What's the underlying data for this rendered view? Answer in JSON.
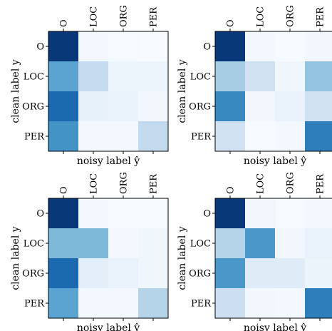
{
  "chart_data": [
    {
      "type": "heatmap",
      "rows": [
        "O",
        "LOC",
        "ORG",
        "PER"
      ],
      "columns": [
        "O",
        "LOC",
        "ORG",
        "PER"
      ],
      "xlabel": "noisy label ŷ",
      "ylabel": "clean label y",
      "values": [
        [
          0.97,
          0.02,
          0.01,
          0.0
        ],
        [
          0.55,
          0.25,
          0.05,
          0.05
        ],
        [
          0.78,
          0.08,
          0.07,
          0.03
        ],
        [
          0.62,
          0.02,
          0.02,
          0.26
        ]
      ]
    },
    {
      "type": "heatmap",
      "rows": [
        "O",
        "LOC",
        "ORG",
        "PER"
      ],
      "columns": [
        "O",
        "LOC",
        "ORG",
        "PER"
      ],
      "xlabel": "noisy label ŷ",
      "ylabel": "clean label y",
      "values": [
        [
          0.97,
          0.02,
          0.01,
          0.03
        ],
        [
          0.35,
          0.2,
          0.04,
          0.4
        ],
        [
          0.66,
          0.03,
          0.07,
          0.2
        ],
        [
          0.2,
          0.01,
          0.02,
          0.7
        ]
      ]
    },
    {
      "type": "heatmap",
      "rows": [
        "O",
        "LOC",
        "ORG",
        "PER"
      ],
      "columns": [
        "O",
        "LOC",
        "ORG",
        "PER"
      ],
      "xlabel": "noisy label ŷ",
      "ylabel": "clean label y",
      "values": [
        [
          0.97,
          0.02,
          0.01,
          0.01
        ],
        [
          0.45,
          0.45,
          0.02,
          0.04
        ],
        [
          0.78,
          0.1,
          0.07,
          0.04
        ],
        [
          0.55,
          0.02,
          0.02,
          0.3
        ]
      ]
    },
    {
      "type": "heatmap",
      "rows": [
        "O",
        "LOC",
        "ORG",
        "PER"
      ],
      "columns": [
        "O",
        "LOC",
        "ORG",
        "PER"
      ],
      "xlabel": "noisy label ŷ",
      "ylabel": "clean label y",
      "values": [
        [
          0.97,
          0.03,
          0.01,
          0.02
        ],
        [
          0.3,
          0.6,
          0.03,
          0.07
        ],
        [
          0.6,
          0.12,
          0.12,
          0.06
        ],
        [
          0.22,
          0.03,
          0.02,
          0.7
        ]
      ]
    }
  ]
}
